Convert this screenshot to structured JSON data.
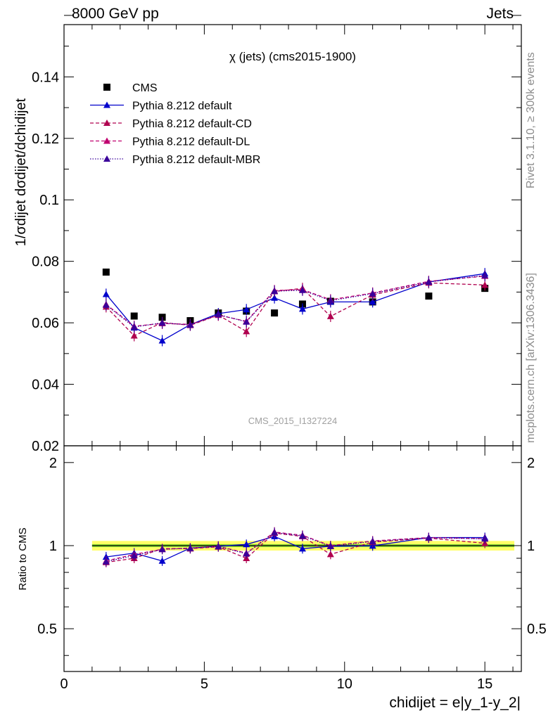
{
  "header": {
    "left": "8000 GeV pp",
    "right": "Jets"
  },
  "side_labels": {
    "rivet": "Rivet 3.1.10, ≥ 300k events",
    "mcplots": "mcplots.cern.ch [arXiv:1306.3436]"
  },
  "watermark": "CMS_2015_I1327224",
  "colors": {
    "data": "#000000",
    "default": "#0000cc",
    "cd": "#b0004f",
    "dl": "#c0006f",
    "mbr": "#3a009a",
    "band_yellow": "#ffff66",
    "band_green": "#88dd33"
  },
  "chart_data": [
    {
      "type": "scatter",
      "title": "χ (jets) (cms2015-1900)",
      "ylabel": "1/σdijet dσdijet/dchidijet",
      "xlim": [
        0,
        16.3
      ],
      "ylim": [
        0.02,
        0.157
      ],
      "yticks": [
        "0.02",
        "0.04",
        "0.06",
        "0.08",
        "0.1",
        "0.12",
        "0.14"
      ],
      "legend_position": "top-left",
      "x": [
        1.5,
        2.5,
        3.5,
        4.5,
        5.5,
        6.5,
        7.5,
        8.5,
        9.5,
        11,
        13,
        15
      ],
      "series": [
        {
          "name": "CMS",
          "style": "marker-square",
          "values": [
            0.0765,
            0.0622,
            0.0618,
            0.0607,
            0.0632,
            0.0638,
            0.0632,
            0.0661,
            0.067,
            0.0668,
            0.0687,
            0.0712
          ]
        },
        {
          "name": "Pythia 8.212 default",
          "style": "solid",
          "values": [
            0.0693,
            0.0584,
            0.0542,
            0.0594,
            0.063,
            0.0643,
            0.0681,
            0.0645,
            0.0668,
            0.0668,
            0.0733,
            0.076
          ]
        },
        {
          "name": "Pythia 8.212 default-CD",
          "style": "dashed",
          "values": [
            0.0652,
            0.0558,
            0.0601,
            0.0592,
            0.0625,
            0.0572,
            0.0702,
            0.0712,
            0.0621,
            0.0691,
            0.073,
            0.0723
          ]
        },
        {
          "name": "Pythia 8.212 default-DL",
          "style": "dashed",
          "values": [
            0.066,
            0.0589,
            0.0598,
            0.0595,
            0.0625,
            0.0605,
            0.0705,
            0.0708,
            0.0675,
            0.0697,
            0.0735,
            0.0752
          ]
        },
        {
          "name": "Pythia 8.212 default-MBR",
          "style": "dotted",
          "values": [
            0.0658,
            0.0586,
            0.06,
            0.0593,
            0.0627,
            0.0603,
            0.0703,
            0.0706,
            0.0672,
            0.0695,
            0.0733,
            0.0754
          ]
        }
      ]
    },
    {
      "type": "scatter",
      "ylabel": "Ratio to CMS",
      "xlabel": "chidijet = e|y_1-y_2|",
      "xlim": [
        0,
        16.3
      ],
      "ylim": [
        0.35,
        2.3
      ],
      "yticks": [
        "0.5",
        "1",
        "2"
      ],
      "xticks": [
        "0",
        "5",
        "10",
        "15"
      ],
      "reference_band": [
        0.96,
        1.04
      ],
      "x": [
        1.5,
        2.5,
        3.5,
        4.5,
        5.5,
        6.5,
        7.5,
        8.5,
        9.5,
        11,
        13,
        15
      ],
      "series": [
        {
          "name": "Pythia 8.212 default",
          "values": [
            0.91,
            0.94,
            0.88,
            0.98,
            0.995,
            1.01,
            1.08,
            0.975,
            0.995,
            0.998,
            1.07,
            1.07
          ]
        },
        {
          "name": "Pythia 8.212 default-CD",
          "values": [
            0.87,
            0.9,
            0.975,
            0.975,
            0.99,
            0.9,
            1.11,
            1.08,
            0.93,
            1.03,
            1.065,
            1.02
          ]
        },
        {
          "name": "Pythia 8.212 default-DL",
          "values": [
            0.88,
            0.93,
            0.97,
            0.98,
            0.995,
            0.94,
            1.12,
            1.09,
            1.0,
            1.04,
            1.07,
            1.06
          ]
        },
        {
          "name": "Pythia 8.212 default-MBR",
          "values": [
            0.875,
            0.92,
            0.97,
            0.978,
            0.993,
            0.935,
            1.115,
            1.085,
            0.995,
            1.035,
            1.068,
            1.058
          ]
        }
      ]
    }
  ]
}
